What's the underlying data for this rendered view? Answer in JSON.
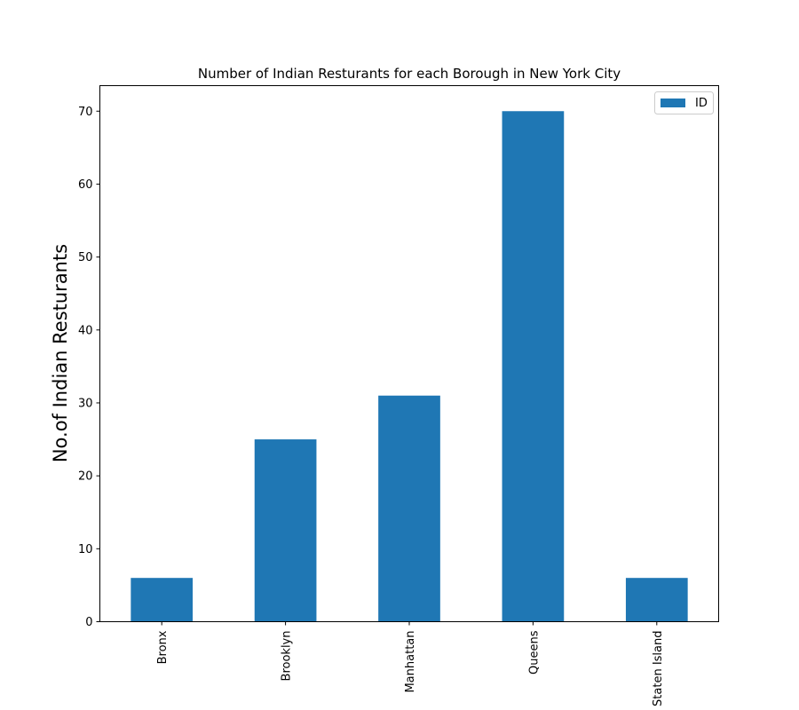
{
  "chart_data": {
    "type": "bar",
    "title": "Number of Indian Resturants for each Borough in New York City",
    "xlabel": "",
    "ylabel": "No.of Indian Resturants",
    "categories": [
      "Bronx",
      "Brooklyn",
      "Manhattan",
      "Queens",
      "Staten Island"
    ],
    "series": [
      {
        "name": "ID",
        "values": [
          6,
          25,
          31,
          70,
          6
        ],
        "color": "#1f77b4"
      }
    ],
    "ylim": [
      0,
      73.5
    ],
    "yticks": [
      0,
      10,
      20,
      30,
      40,
      50,
      60,
      70
    ],
    "grid": false,
    "legend": "top-right"
  }
}
